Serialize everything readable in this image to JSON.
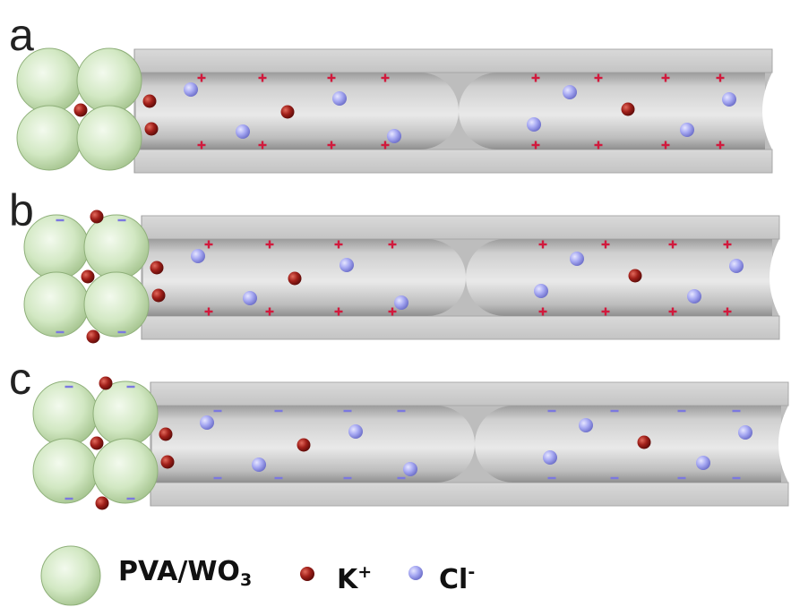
{
  "panels": [
    {
      "label": "a",
      "wall_charge": "+",
      "wall_color": "#d11a3d",
      "particle_charge": "none"
    },
    {
      "label": "b",
      "wall_charge": "+",
      "wall_color": "#d11a3d",
      "particle_charge": "-"
    },
    {
      "label": "c",
      "wall_charge": "-",
      "wall_color": "#7b78e0",
      "particle_charge": "-"
    }
  ],
  "legend": {
    "particle_label": "PVA/WO",
    "particle_subscript": "3",
    "cation_label": "K",
    "cation_superscript": "+",
    "anion_label": "Cl",
    "anion_superscript": "-"
  },
  "colors": {
    "particle": "#c9e3b6",
    "cation": "#8b1410",
    "anion": "#a7a8f2",
    "channel": "#c8c8c8",
    "positive_charge": "#d11a3d",
    "negative_charge": "#7b78e0"
  }
}
